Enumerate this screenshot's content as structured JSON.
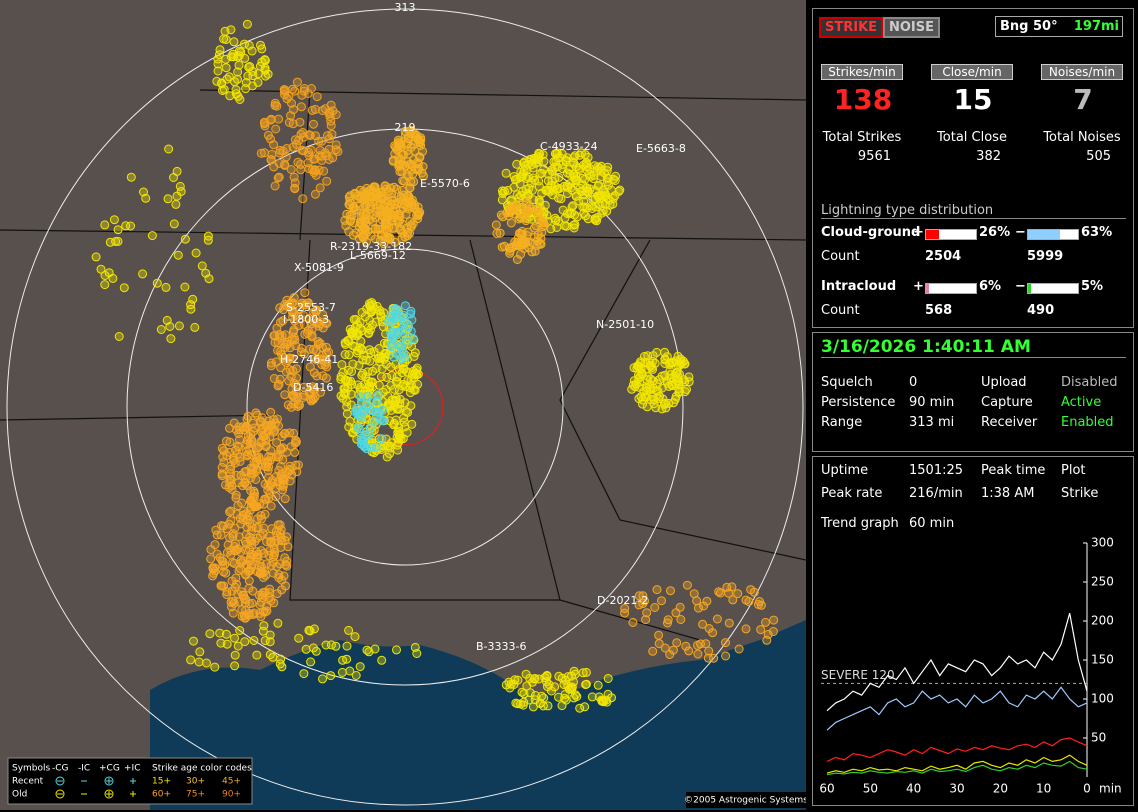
{
  "header": {
    "strike_button": "STRIKE",
    "noise_button": "NOISE",
    "bearing": "Bng 50°",
    "distance": "197mi"
  },
  "rates": [
    {
      "label": "Strikes/min",
      "value": "138",
      "total_label": "Total Strikes",
      "total": "9561"
    },
    {
      "label": "Close/min",
      "value": "15",
      "total_label": "Total Close",
      "total": "382"
    },
    {
      "label": "Noises/min",
      "value": "7",
      "total_label": "Total Noises",
      "total": "505"
    }
  ],
  "distribution": {
    "title": "Lightning type distribution",
    "rows": [
      {
        "label": "Cloud-ground",
        "count_label": "Count",
        "pos_sign": "+",
        "pos": {
          "value": 26,
          "label": "26%"
        },
        "pos_count": "2504",
        "neg_sign": "−",
        "neg": {
          "value": 63,
          "label": "63%"
        },
        "neg_count": "5999"
      },
      {
        "label": "Intracloud",
        "count_label": "Count",
        "pos_sign": "+",
        "pos": {
          "value": 6,
          "label": "6%"
        },
        "pos_count": "568",
        "neg_sign": "−",
        "neg": {
          "value": 5,
          "label": "5%"
        },
        "neg_count": "490"
      }
    ]
  },
  "status": {
    "datetime": "3/16/2026 1:40:11 AM",
    "rows": [
      [
        "Squelch",
        "0",
        "Upload",
        "Disabled"
      ],
      [
        "Persistence",
        "90 min",
        "Capture",
        "Active"
      ],
      [
        "Range",
        "313 mi",
        "Receiver",
        "Enabled"
      ]
    ]
  },
  "stats": {
    "rows": [
      [
        "Uptime",
        "1501:25",
        "Peak time",
        "Plot"
      ],
      [
        "Peak rate",
        "216/min",
        "1:38 AM",
        "Strike"
      ],
      [
        "Trend graph",
        "60 min"
      ]
    ]
  },
  "map": {
    "range_labels": [
      "313",
      "219"
    ],
    "cell_labels": [
      "E-5570-6",
      "R-2319-33-182",
      "L-5669-12",
      "X-5081-9",
      "S-2553-7",
      "I-1800-3",
      "H-2746-41",
      "D-5416",
      "N-2501-10",
      "D-2021-2",
      "B-3333-6",
      "C-4933-24",
      "E-5663-8"
    ],
    "legend": {
      "symbols": "Symbols",
      "types": [
        "-CG",
        "-IC",
        "+CG",
        "+IC"
      ],
      "age_title": "Strike age color codes",
      "recent": "Recent",
      "old": "Old",
      "recent_ages": [
        "15+",
        "30+",
        "45+"
      ],
      "old_ages": [
        "60+",
        "75+",
        "90+"
      ]
    },
    "copyright": "©2005 Astrogenic Systems"
  },
  "chart_data": {
    "type": "line",
    "x": [
      60,
      58,
      56,
      54,
      52,
      50,
      48,
      46,
      44,
      42,
      40,
      38,
      36,
      34,
      32,
      30,
      28,
      26,
      24,
      22,
      20,
      18,
      16,
      14,
      12,
      10,
      8,
      6,
      4,
      2,
      0
    ],
    "xlim": [
      60,
      0
    ],
    "xticks": [
      60,
      50,
      40,
      30,
      20,
      10,
      0
    ],
    "xlabel": "min",
    "ylim": [
      0,
      300
    ],
    "yticks": [
      50,
      100,
      150,
      200,
      250,
      300
    ],
    "threshold": {
      "value": 120,
      "label": "SEVERE 120"
    },
    "series": [
      {
        "color": "#ffffff",
        "values": [
          85,
          95,
          100,
          110,
          105,
          120,
          115,
          130,
          125,
          140,
          120,
          135,
          150,
          130,
          145,
          140,
          135,
          150,
          145,
          130,
          140,
          155,
          145,
          150,
          140,
          160,
          150,
          170,
          210,
          150,
          110
        ]
      },
      {
        "color": "#9fc8ff",
        "values": [
          60,
          70,
          75,
          80,
          85,
          90,
          80,
          95,
          100,
          90,
          95,
          110,
          100,
          105,
          95,
          100,
          90,
          105,
          95,
          100,
          110,
          95,
          90,
          105,
          100,
          110,
          100,
          115,
          100,
          90,
          95
        ]
      },
      {
        "color": "#ff2020",
        "values": [
          20,
          25,
          22,
          30,
          28,
          25,
          30,
          35,
          32,
          28,
          35,
          30,
          38,
          34,
          30,
          36,
          33,
          38,
          35,
          40,
          37,
          35,
          40,
          42,
          38,
          45,
          40,
          48,
          50,
          45,
          40
        ]
      },
      {
        "color": "#e8e800",
        "values": [
          5,
          8,
          6,
          10,
          8,
          12,
          9,
          10,
          8,
          12,
          10,
          8,
          14,
          10,
          12,
          15,
          10,
          18,
          20,
          15,
          12,
          18,
          15,
          22,
          18,
          25,
          20,
          22,
          28,
          20,
          15
        ]
      },
      {
        "color": "#30d030",
        "values": [
          3,
          5,
          4,
          6,
          5,
          8,
          6,
          5,
          7,
          6,
          8,
          5,
          10,
          7,
          8,
          10,
          7,
          12,
          15,
          10,
          8,
          12,
          10,
          15,
          12,
          18,
          15,
          14,
          20,
          12,
          10
        ]
      }
    ]
  }
}
